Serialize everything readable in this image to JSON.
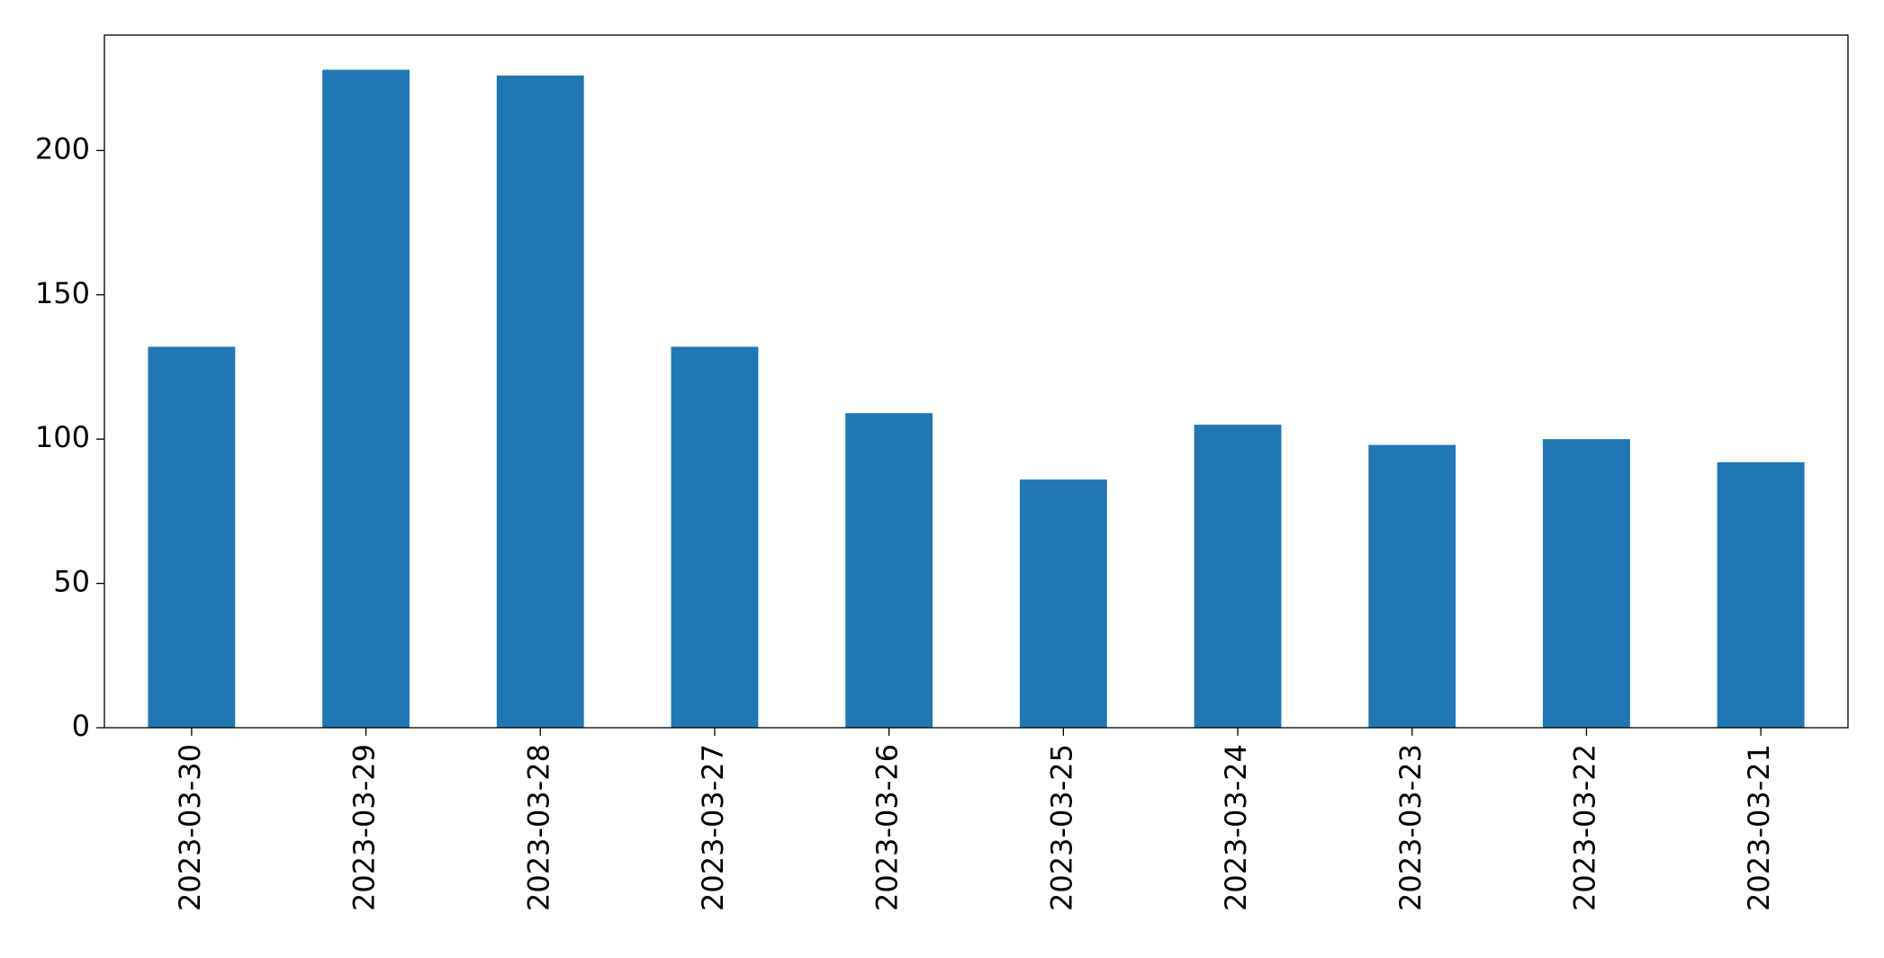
{
  "chart_data": {
    "type": "bar",
    "categories": [
      "2023-03-30",
      "2023-03-29",
      "2023-03-28",
      "2023-03-27",
      "2023-03-26",
      "2023-03-25",
      "2023-03-24",
      "2023-03-23",
      "2023-03-22",
      "2023-03-21"
    ],
    "values": [
      132,
      228,
      226,
      132,
      109,
      86,
      105,
      98,
      100,
      92
    ],
    "color": "#1f77b4",
    "ylim": [
      0,
      240
    ],
    "yticks": [
      0,
      50,
      100,
      150,
      200
    ],
    "grid": false
  }
}
